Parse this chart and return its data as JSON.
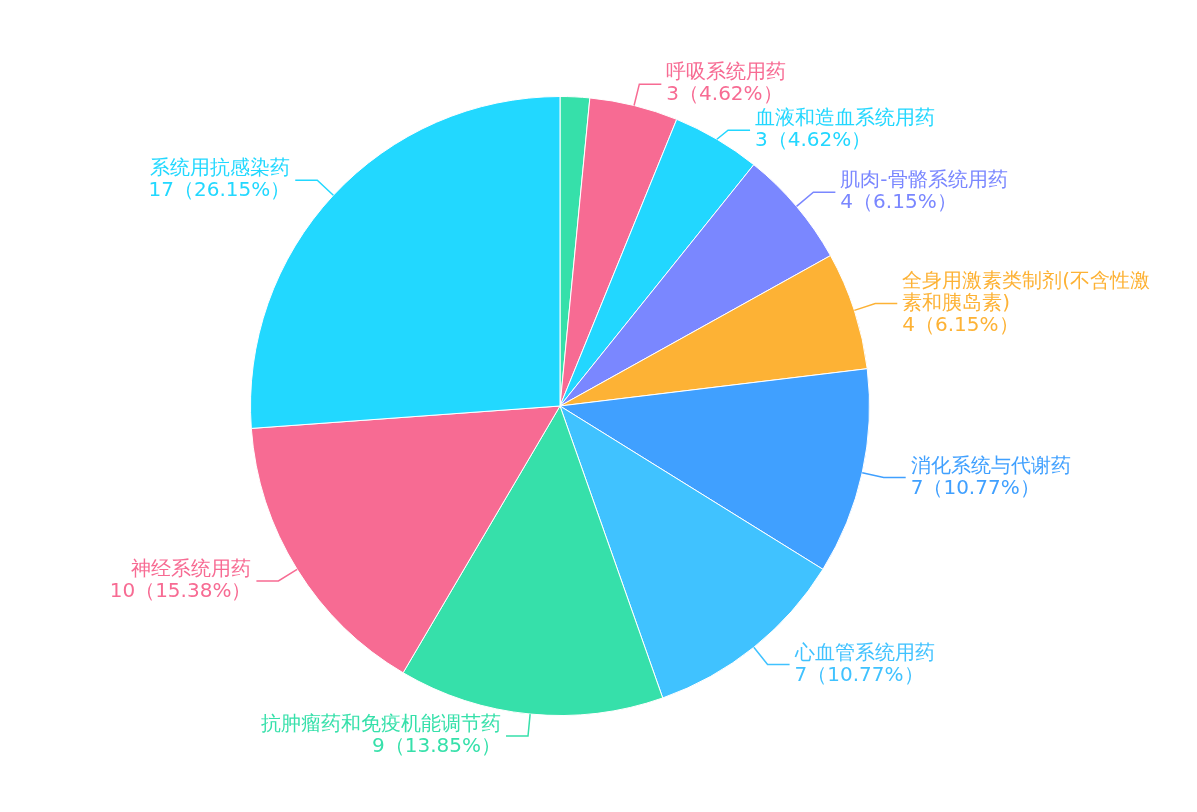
{
  "chart_data": {
    "type": "pie",
    "categories": [
      null,
      "呼吸系统用药",
      "血液和造血系统用药",
      "肌肉-骨骼系统用药",
      "全身用激素类制剂(不含性激素和胰岛素)",
      "消化系统与代谢药",
      "心血管系统用药",
      "抗肿瘤药和免疫机能调节药",
      "神经系统用药",
      "系统用抗感染药"
    ],
    "values": [
      1,
      3,
      3,
      4,
      4,
      7,
      7,
      9,
      10,
      17
    ],
    "colors": [
      "#36e0aa",
      "#f76b93",
      "#22d7ff",
      "#7a87ff",
      "#fdb235",
      "#40a0ff",
      "#40c2ff",
      "#36e0aa",
      "#f76b93",
      "#22d8ff"
    ],
    "value_labels": [
      null,
      "3（4.62%）",
      "3（4.62%）",
      "4（6.15%）",
      "4（6.15%）",
      "7（10.77%）",
      "7（10.77%）",
      "9（13.85%）",
      "10（15.38%）",
      "17（26.15%）"
    ],
    "legend": false
  }
}
